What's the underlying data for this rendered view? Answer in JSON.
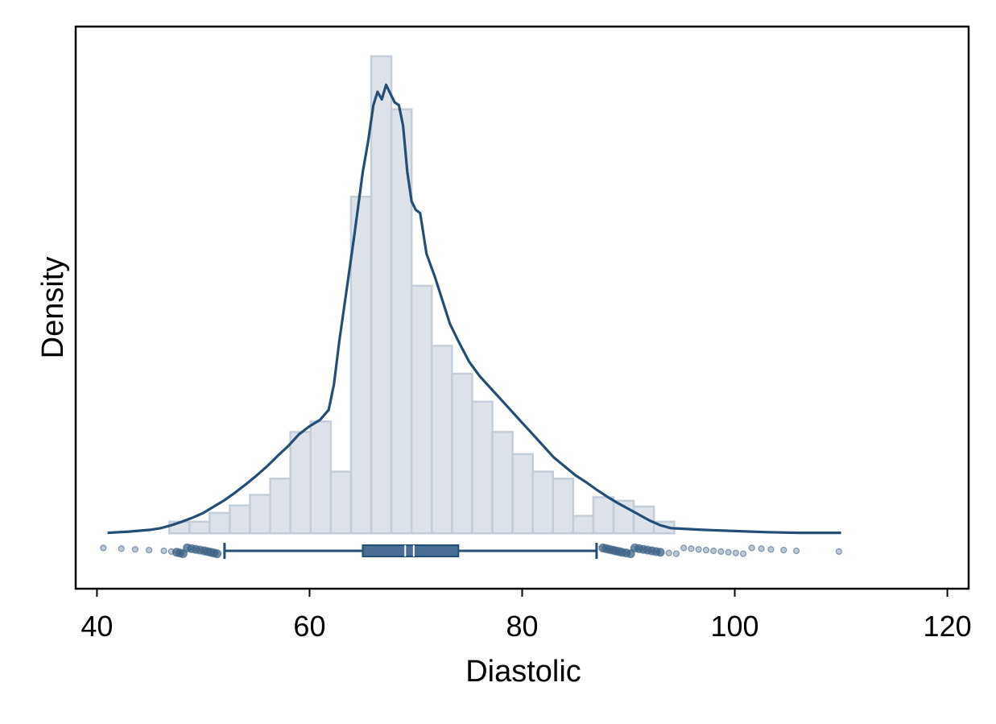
{
  "chart_data": {
    "type": "bar",
    "title": "",
    "xlabel": "Diastolic",
    "ylabel": "Density",
    "xlim": [
      38,
      122
    ],
    "ylim": [
      -0.0095,
      0.087
    ],
    "x_ticks": [
      40,
      60,
      80,
      100,
      120
    ],
    "y_ticks": [],
    "grid": false,
    "legend": "none",
    "colors": {
      "bar_fill": "#dee3ea",
      "bar_stroke": "#c4ceda",
      "line": "#254e77",
      "box_fill": "#4a6d93",
      "points": "#3e6287"
    },
    "histogram": {
      "bin_width": 1.9,
      "bins": [
        {
          "x0": 46.8,
          "density": 0.002
        },
        {
          "x0": 48.7,
          "density": 0.002
        },
        {
          "x0": 50.6,
          "density": 0.0035
        },
        {
          "x0": 52.5,
          "density": 0.0048
        },
        {
          "x0": 54.4,
          "density": 0.0066
        },
        {
          "x0": 56.3,
          "density": 0.0094
        },
        {
          "x0": 58.2,
          "density": 0.0174
        },
        {
          "x0": 60.1,
          "density": 0.0192
        },
        {
          "x0": 62.0,
          "density": 0.0106
        },
        {
          "x0": 63.9,
          "density": 0.0578
        },
        {
          "x0": 65.8,
          "density": 0.0819
        },
        {
          "x0": 67.7,
          "density": 0.0728
        },
        {
          "x0": 69.6,
          "density": 0.0425
        },
        {
          "x0": 71.5,
          "density": 0.0322
        },
        {
          "x0": 73.4,
          "density": 0.0274
        },
        {
          "x0": 75.3,
          "density": 0.0226
        },
        {
          "x0": 77.2,
          "density": 0.0174
        },
        {
          "x0": 79.1,
          "density": 0.0136
        },
        {
          "x0": 81.0,
          "density": 0.0106
        },
        {
          "x0": 82.9,
          "density": 0.0094
        },
        {
          "x0": 84.8,
          "density": 0.003
        },
        {
          "x0": 86.7,
          "density": 0.0062
        },
        {
          "x0": 88.6,
          "density": 0.0056
        },
        {
          "x0": 90.5,
          "density": 0.0046
        },
        {
          "x0": 92.4,
          "density": 0.002
        }
      ]
    },
    "density_curve": {
      "x": [
        41,
        43,
        45,
        46,
        47,
        48,
        49,
        50,
        51,
        52,
        53,
        54,
        55,
        56,
        57,
        58,
        59,
        60,
        61,
        61.8,
        62.3,
        62.8,
        63.5,
        64.2,
        65,
        65.5,
        66,
        66.4,
        66.8,
        67.2,
        67.6,
        68,
        68.4,
        68.8,
        69.2,
        69.6,
        70,
        70.4,
        71,
        71.8,
        72.5,
        73.2,
        74,
        75,
        76,
        77,
        78,
        79,
        80,
        81,
        82,
        83,
        84,
        85,
        86,
        87,
        88,
        89,
        90,
        91,
        92,
        93,
        94,
        95,
        97,
        100,
        103,
        106,
        110
      ],
      "y": [
        0.0001,
        0.0003,
        0.0006,
        0.0009,
        0.0014,
        0.002,
        0.0027,
        0.0035,
        0.0046,
        0.0057,
        0.007,
        0.0084,
        0.0099,
        0.0115,
        0.0133,
        0.015,
        0.017,
        0.0184,
        0.0195,
        0.0212,
        0.0256,
        0.033,
        0.042,
        0.051,
        0.062,
        0.0672,
        0.0735,
        0.0758,
        0.0745,
        0.077,
        0.0755,
        0.074,
        0.0735,
        0.07,
        0.062,
        0.057,
        0.0555,
        0.055,
        0.048,
        0.044,
        0.04,
        0.036,
        0.033,
        0.0295,
        0.027,
        0.025,
        0.023,
        0.021,
        0.019,
        0.017,
        0.015,
        0.013,
        0.0115,
        0.01,
        0.0088,
        0.0075,
        0.0063,
        0.0052,
        0.0042,
        0.0032,
        0.0022,
        0.0014,
        0.0009,
        0.0008,
        0.0006,
        0.0004,
        0.0002,
        0.0001,
        0.0001
      ]
    },
    "boxplot": {
      "y": -0.003,
      "whisker_low": 52,
      "q1": 65,
      "median": 69,
      "mean": 69.8,
      "q3": 74,
      "whisker_high": 87,
      "outliers_low": [
        40.6,
        42.3,
        43.6,
        44.9,
        46.3,
        47.0,
        47.5,
        47.8,
        48.1,
        48.5,
        48.9,
        49.3,
        49.7,
        50.1,
        50.4,
        50.7,
        51.0,
        51.3
      ],
      "outliers_high": [
        87.6,
        87.9,
        88.2,
        88.5,
        88.8,
        89.1,
        89.4,
        89.8,
        90.2,
        90.6,
        91.0,
        91.4,
        91.8,
        92.2,
        92.6,
        93.0,
        93.8,
        94.5,
        95.2,
        95.9,
        96.6,
        97.3,
        98.0,
        98.7,
        99.4,
        100.1,
        100.8,
        101.6,
        102.5,
        103.4,
        104.6,
        105.8,
        109.8
      ]
    }
  }
}
